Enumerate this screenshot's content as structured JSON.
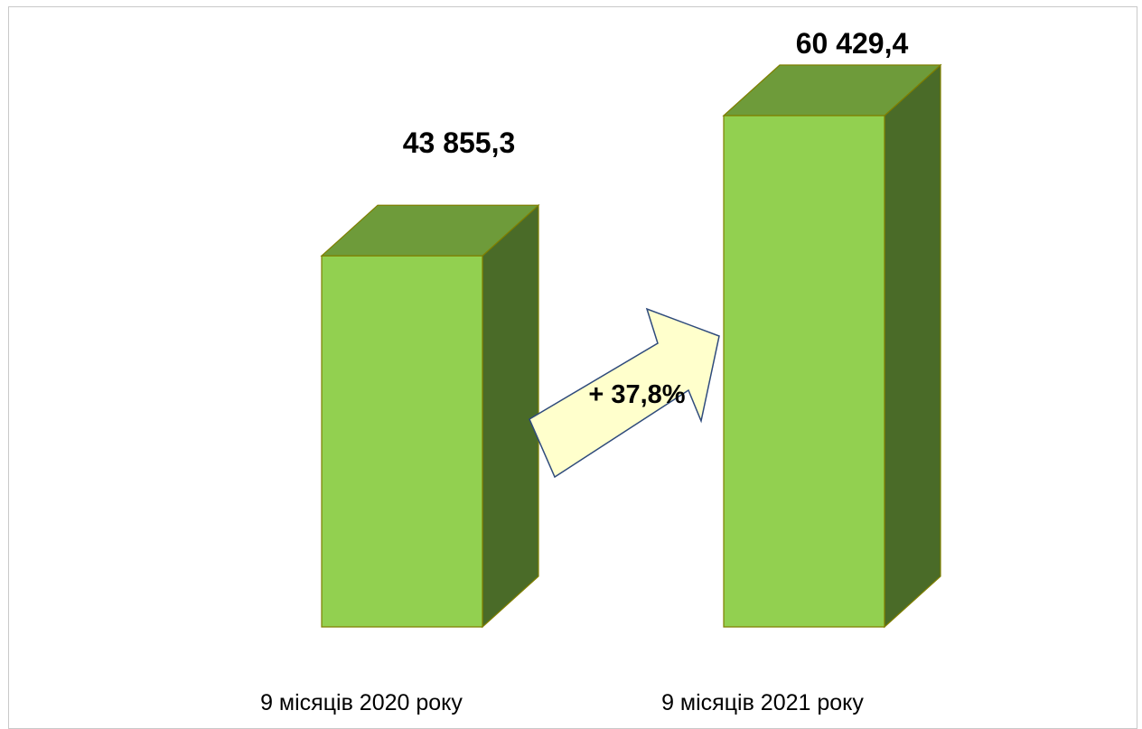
{
  "chart_data": {
    "type": "bar",
    "categories": [
      "9 місяців 2020 року",
      "9 місяців 2021 року"
    ],
    "values": [
      43855.3,
      60429.4
    ],
    "data_labels": [
      "43 855,3",
      "60 429,4"
    ],
    "annotation": "+ 37,8%",
    "three_d": true,
    "grid": false,
    "legend": "none",
    "colors": {
      "bar_front": "#92d050",
      "bar_top": "#6e9b3a",
      "bar_side": "#4a6b28",
      "bar_outline": "#7f7f00",
      "arrow_fill": "#ffffcc",
      "arrow_stroke": "#2f4b7c"
    }
  }
}
